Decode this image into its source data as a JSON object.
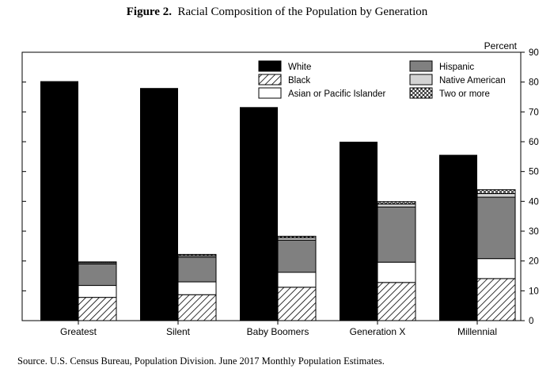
{
  "figure": {
    "label": "Figure 2.",
    "title": "Racial Composition of the Population by Generation",
    "source": "Source.  U.S. Census Bureau, Population Division.  June 2017 Monthly Population Estimates."
  },
  "chart_data": {
    "type": "bar",
    "ylabel": "Percent",
    "ylim": [
      0,
      90
    ],
    "yticks": [
      0,
      10,
      20,
      30,
      40,
      50,
      60,
      70,
      80,
      90
    ],
    "y_axis_side": "right",
    "grid": false,
    "legend_position": "top-right",
    "categories": [
      "Greatest",
      "Silent",
      "Baby Boomers",
      "Generation X",
      "Millennial"
    ],
    "white": {
      "name": "White",
      "color": "#000000",
      "values": [
        80.3,
        78.0,
        71.6,
        60.0,
        55.6
      ]
    },
    "stack": [
      {
        "name": "Black",
        "fill": "diagonal-hatch",
        "values": [
          7.8,
          8.7,
          11.2,
          12.8,
          14.1
        ]
      },
      {
        "name": "Asian or Pacific Islander",
        "fill": "#ffffff",
        "values": [
          4.0,
          4.3,
          5.0,
          6.8,
          6.7
        ]
      },
      {
        "name": "Hispanic",
        "fill": "#808080",
        "values": [
          7.2,
          8.3,
          10.8,
          18.5,
          20.6
        ]
      },
      {
        "name": "Native American",
        "fill": "#d3d3d3",
        "values": [
          0.4,
          0.5,
          0.8,
          1.0,
          1.2
        ]
      },
      {
        "name": "Two or more",
        "fill": "cross-hatch",
        "values": [
          0.3,
          0.4,
          0.5,
          0.8,
          1.3
        ]
      }
    ]
  }
}
